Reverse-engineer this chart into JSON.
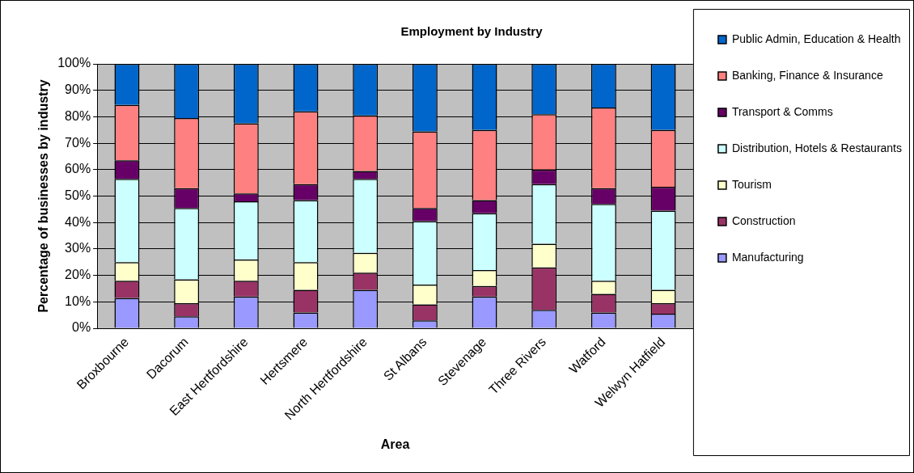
{
  "chart_data": {
    "type": "bar",
    "title": "Employment by Industry",
    "xlabel": "Area",
    "ylabel": "Percentage of businesses by industry",
    "stacked": true,
    "grid": "y",
    "legend": "right",
    "categories": [
      "Broxbourne",
      "Dacorum",
      "East Hertfordshire",
      "Hertsmere",
      "North Hertfordshire",
      "St Albans",
      "Stevenage",
      "Three Rivers",
      "Watford",
      "Welwyn Hatfield"
    ],
    "ylim": [
      0,
      100
    ],
    "yticks": [
      {
        "value": 0,
        "label": "0%"
      },
      {
        "value": 10,
        "label": "10%"
      },
      {
        "value": 20,
        "label": "20%"
      },
      {
        "value": 30,
        "label": "30%"
      },
      {
        "value": 40,
        "label": "40%"
      },
      {
        "value": 50,
        "label": "50%"
      },
      {
        "value": 60,
        "label": "60%"
      },
      {
        "value": 70,
        "label": "70%"
      },
      {
        "value": 80,
        "label": "80%"
      },
      {
        "value": 90,
        "label": "90%"
      },
      {
        "value": 100,
        "label": "100%"
      }
    ],
    "series": [
      {
        "name": "Manufacturing",
        "color": "#9999ff",
        "values": [
          11.5,
          4.5,
          12,
          6,
          14.5,
          3,
          12,
          7,
          6,
          5.5
        ]
      },
      {
        "name": "Construction",
        "color": "#993366",
        "values": [
          6.5,
          5,
          6,
          8.5,
          6.5,
          6,
          4,
          16,
          7,
          4
        ]
      },
      {
        "name": "Tourism",
        "color": "#ffffcc",
        "values": [
          7,
          9,
          8,
          10.5,
          7.5,
          7.5,
          6,
          9,
          5,
          5
        ]
      },
      {
        "name": "Distribution, Hotels & Restaurants",
        "color": "#ccffff",
        "values": [
          31.5,
          27,
          22,
          23.5,
          28,
          24,
          21.5,
          22.5,
          29,
          30
        ]
      },
      {
        "name": "Transport & Comms",
        "color": "#660066",
        "values": [
          7,
          7.5,
          3,
          6,
          3,
          5,
          5,
          5.5,
          6,
          9
        ]
      },
      {
        "name": "Banking, Finance & Insurance",
        "color": "#ff8080",
        "values": [
          21,
          26.5,
          26.5,
          27.5,
          21,
          29,
          26.5,
          21,
          30.5,
          21.5
        ]
      },
      {
        "name": "Public Admin, Education & Health",
        "color": "#0066cc",
        "values": [
          15.5,
          20.5,
          22.5,
          18,
          19.5,
          25.5,
          25,
          19,
          16.5,
          25
        ]
      }
    ]
  }
}
